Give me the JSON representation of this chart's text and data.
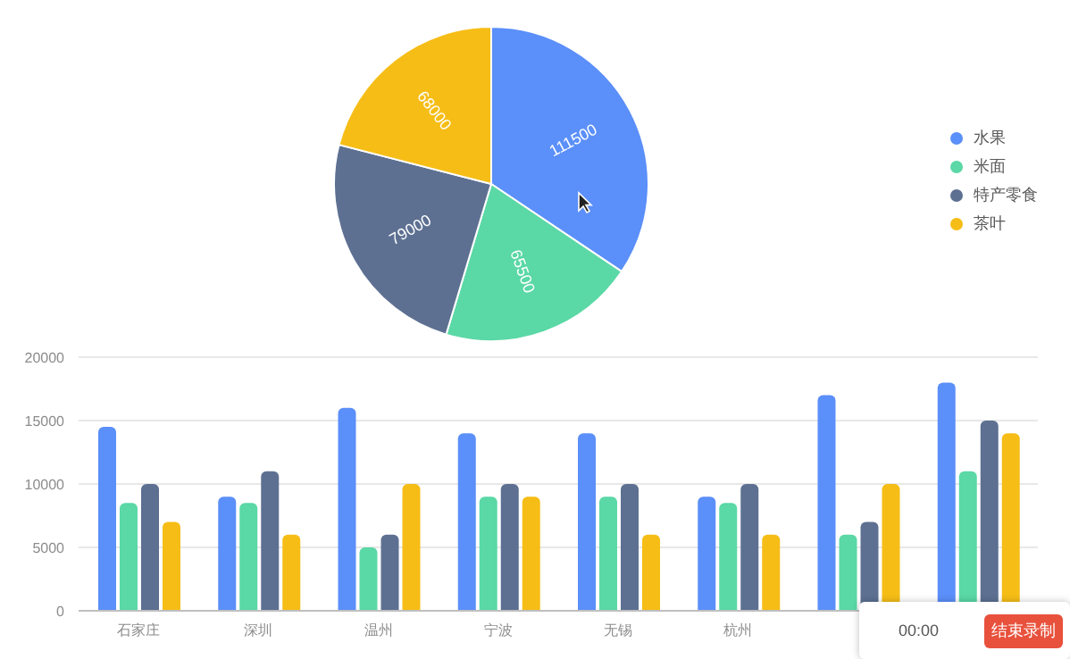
{
  "chart_data": [
    {
      "type": "pie",
      "categories": [
        "水果",
        "米面",
        "特产零食",
        "茶叶"
      ],
      "values": [
        111500,
        65500,
        79000,
        68000
      ],
      "colors": [
        "#5b8ff9",
        "#5ad8a6",
        "#5d7092",
        "#f6bd16"
      ],
      "data_labels": true,
      "legend": "right"
    },
    {
      "type": "bar",
      "categories": [
        "石家庄",
        "深圳",
        "温州",
        "宁波",
        "无锡",
        "杭州",
        null,
        null
      ],
      "series": [
        {
          "color": "#5b8ff9",
          "values": [
            14500,
            9000,
            16000,
            14000,
            14000,
            9000,
            17000,
            18000
          ]
        },
        {
          "color": "#5ad8a6",
          "values": [
            8500,
            8500,
            5000,
            9000,
            9000,
            8500,
            6000,
            11000
          ]
        },
        {
          "color": "#5d7092",
          "values": [
            10000,
            11000,
            6000,
            10000,
            10000,
            10000,
            7000,
            15000
          ]
        },
        {
          "color": "#f6bd16",
          "values": [
            7000,
            6000,
            10000,
            9000,
            6000,
            6000,
            10000,
            14000
          ]
        }
      ],
      "ylim": [
        0,
        20000
      ],
      "yticks": [
        0,
        5000,
        10000,
        15000,
        20000
      ],
      "grid": "y",
      "annotations": [
        "00:00",
        "结束录制"
      ]
    }
  ]
}
